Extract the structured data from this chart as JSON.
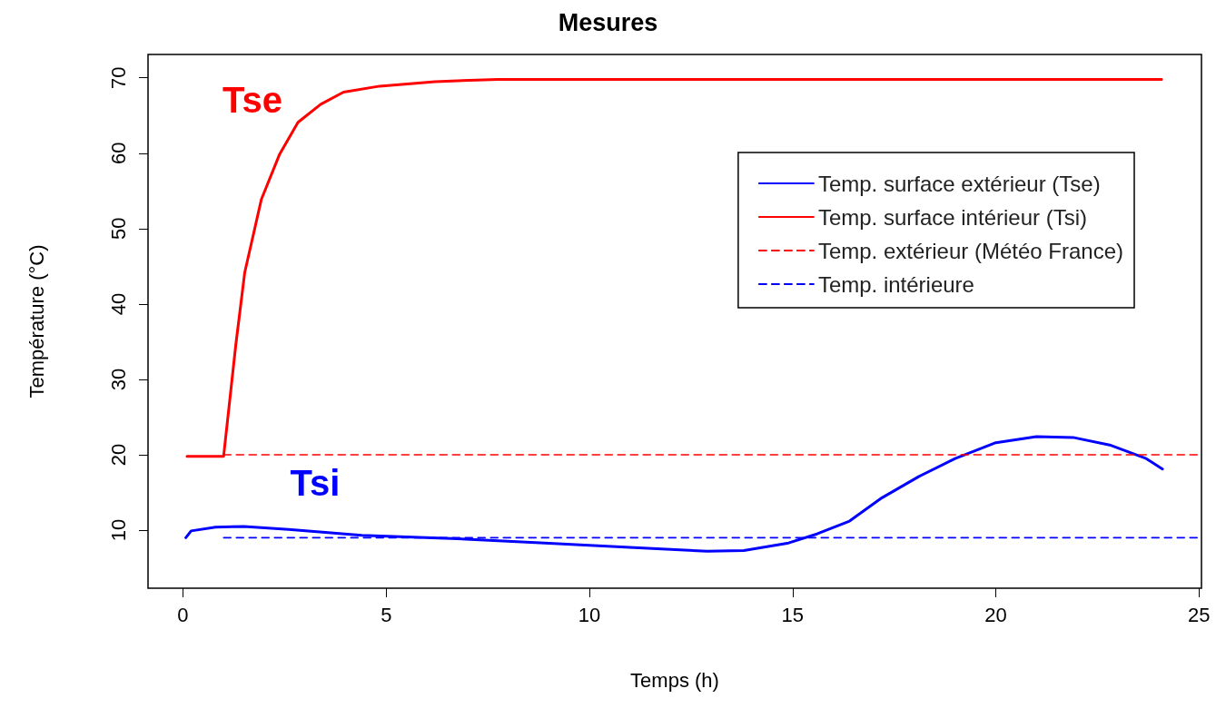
{
  "chart_data": {
    "type": "line",
    "title": "Mesures",
    "xlabel": "Temps (h)",
    "ylabel": "Température (°C)",
    "xlim": [
      -0.86,
      25.06
    ],
    "ylim": [
      2.3,
      73.1
    ],
    "xticks": [
      0,
      5,
      10,
      15,
      20,
      25
    ],
    "yticks": [
      10,
      20,
      30,
      40,
      50,
      60,
      70
    ],
    "grid": false,
    "legend": "top right",
    "marker": "none",
    "series": [
      {
        "name": "Temp. surface extérieur (Tse)",
        "color": "#0000ff",
        "line_style": "solid",
        "x": [
          0.07,
          0.2,
          0.8,
          1.5,
          2.6,
          4.4,
          6.6,
          8.9,
          11.1,
          12.9,
          13.8,
          14.9,
          15.6,
          16.4,
          17.2,
          18.1,
          19.0,
          20.0,
          21.0,
          21.9,
          22.8,
          23.7,
          24.1
        ],
        "values": [
          9.0,
          9.9,
          10.4,
          10.5,
          10.1,
          9.3,
          8.9,
          8.3,
          7.7,
          7.2,
          7.3,
          8.3,
          9.5,
          11.2,
          14.3,
          17.1,
          19.5,
          21.6,
          22.4,
          22.3,
          21.3,
          19.5,
          18.1
        ]
      },
      {
        "name": "Temp. surface intérieur (Tsi)",
        "color": "#ff0000",
        "line_style": "solid",
        "x": [
          0.1,
          1.0,
          1.3,
          1.52,
          1.93,
          2.38,
          2.83,
          3.39,
          3.95,
          4.84,
          6.2,
          7.76,
          24.08
        ],
        "values": [
          19.8,
          19.8,
          34.6,
          44.2,
          53.9,
          59.9,
          64.1,
          66.5,
          68.1,
          68.9,
          69.5,
          69.8,
          69.8
        ]
      },
      {
        "name": "Temp. extérieur (Météo France)",
        "color": "#ff0000",
        "line_style": "dashed",
        "x": [
          1.0,
          25.0
        ],
        "values": [
          20,
          20
        ]
      },
      {
        "name": "Temp. intérieure",
        "color": "#0000ff",
        "line_style": "dashed",
        "x": [
          1.0,
          25.0
        ],
        "values": [
          9.0,
          9.0
        ]
      }
    ],
    "annotations": [
      "Tse",
      "Tsi"
    ]
  }
}
